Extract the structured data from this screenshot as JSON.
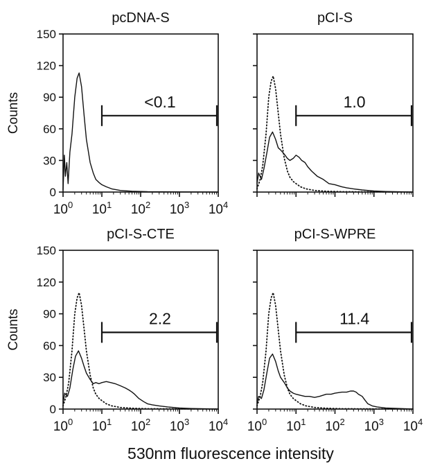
{
  "figure": {
    "xlabel": "530nm fluorescence intensity"
  },
  "chart_data": [
    {
      "type": "line",
      "title": "pcDNA-S",
      "ylabel": "Counts",
      "xscale": "log",
      "xlim": [
        1,
        10000
      ],
      "ylim": [
        0,
        150
      ],
      "yticks": [
        0,
        30,
        60,
        90,
        120,
        150
      ],
      "xticks": [
        1,
        10,
        100,
        1000,
        10000
      ],
      "gate": {
        "x_start": 10,
        "x_end": 10000,
        "y": 60,
        "label": "<0.1"
      },
      "series": [
        {
          "style": "solid",
          "x": [
            1,
            1.08,
            1.15,
            1.25,
            1.35,
            1.5,
            1.7,
            2.0,
            2.3,
            2.6,
            3.0,
            3.5,
            4.0,
            5.0,
            6.0,
            7.0,
            8.5,
            10,
            13,
            18,
            30,
            60,
            150,
            10000
          ],
          "y": [
            2,
            35,
            15,
            28,
            8,
            38,
            55,
            90,
            108,
            113,
            100,
            72,
            50,
            28,
            18,
            12,
            9,
            7,
            5,
            3,
            1.5,
            0.8,
            0.3,
            0
          ]
        }
      ]
    },
    {
      "type": "line",
      "title": "pCI-S",
      "ylabel": "",
      "xscale": "log",
      "xlim": [
        1,
        10000
      ],
      "ylim": [
        0,
        150
      ],
      "gate": {
        "x_start": 10,
        "x_end": 10000,
        "y": 60,
        "label": "1.0"
      },
      "series": [
        {
          "style": "dotted",
          "x": [
            1,
            1.2,
            1.4,
            1.7,
            2.0,
            2.3,
            2.6,
            3.0,
            3.5,
            4.0,
            5.0,
            6.0,
            7.0,
            8.5,
            10,
            13,
            18,
            30,
            60,
            150,
            10000
          ],
          "y": [
            3,
            12,
            25,
            55,
            90,
            105,
            110,
            98,
            75,
            55,
            32,
            20,
            14,
            10,
            8,
            5,
            3,
            1.5,
            0.8,
            0.3,
            0
          ]
        },
        {
          "style": "solid",
          "x": [
            1,
            1.1,
            1.3,
            1.5,
            1.8,
            2.1,
            2.5,
            3.0,
            3.5,
            4.0,
            5.0,
            6.0,
            7.0,
            8.5,
            10,
            12,
            14,
            17,
            20,
            25,
            35,
            50,
            70,
            100,
            150,
            200,
            300,
            500,
            1000,
            2000,
            10000
          ],
          "y": [
            8,
            18,
            12,
            22,
            38,
            52,
            57,
            50,
            42,
            40,
            36,
            32,
            30,
            32,
            35,
            33,
            30,
            28,
            24,
            20,
            15,
            12,
            8,
            7,
            5,
            4,
            3,
            2,
            1,
            0.5,
            0
          ]
        }
      ]
    },
    {
      "type": "line",
      "title": "pCI-S-CTE",
      "ylabel": "Counts",
      "xscale": "log",
      "xlim": [
        1,
        10000
      ],
      "ylim": [
        0,
        150
      ],
      "yticks": [
        0,
        30,
        60,
        90,
        120,
        150
      ],
      "xticks": [
        1,
        10,
        100,
        1000,
        10000
      ],
      "gate": {
        "x_start": 10,
        "x_end": 10000,
        "y": 60,
        "label": "2.2"
      },
      "series": [
        {
          "style": "dotted",
          "x": [
            1,
            1.2,
            1.4,
            1.7,
            2.0,
            2.3,
            2.6,
            3.0,
            3.5,
            4.0,
            5.0,
            6.0,
            7.0,
            8.5,
            10,
            13,
            18,
            30,
            60,
            150,
            10000
          ],
          "y": [
            3,
            12,
            25,
            55,
            90,
            105,
            110,
            98,
            75,
            55,
            32,
            20,
            14,
            10,
            8,
            5,
            3,
            1.5,
            0.8,
            0.3,
            0
          ]
        },
        {
          "style": "solid",
          "x": [
            1,
            1.1,
            1.3,
            1.5,
            1.8,
            2.1,
            2.5,
            3.0,
            3.5,
            4.0,
            5.0,
            6.0,
            7.0,
            8.5,
            10,
            13,
            17,
            22,
            30,
            40,
            50,
            60,
            70,
            90,
            120,
            150,
            200,
            300,
            500,
            1000,
            2000,
            10000
          ],
          "y": [
            5,
            15,
            12,
            20,
            38,
            50,
            55,
            48,
            40,
            34,
            28,
            24,
            25,
            24,
            25,
            26,
            25,
            24,
            22,
            20,
            18,
            16,
            14,
            10,
            7,
            5,
            4,
            3,
            2,
            1,
            0.5,
            0
          ]
        }
      ]
    },
    {
      "type": "line",
      "title": "pCI-S-WPRE",
      "ylabel": "",
      "xscale": "log",
      "xlim": [
        1,
        10000
      ],
      "ylim": [
        0,
        150
      ],
      "xticks": [
        1,
        10,
        100,
        1000,
        10000
      ],
      "gate": {
        "x_start": 10,
        "x_end": 10000,
        "y": 60,
        "label": "11.4"
      },
      "series": [
        {
          "style": "dotted",
          "x": [
            1,
            1.2,
            1.4,
            1.7,
            2.0,
            2.3,
            2.6,
            3.0,
            3.5,
            4.0,
            5.0,
            6.0,
            7.0,
            8.5,
            10,
            13,
            18,
            30,
            60,
            150,
            10000
          ],
          "y": [
            3,
            12,
            25,
            55,
            90,
            105,
            110,
            98,
            75,
            55,
            32,
            20,
            14,
            10,
            8,
            5,
            3,
            1.5,
            0.8,
            0.3,
            0
          ]
        },
        {
          "style": "solid",
          "x": [
            1,
            1.1,
            1.3,
            1.5,
            1.8,
            2.1,
            2.5,
            3.0,
            3.5,
            4.0,
            5.0,
            6.0,
            7.0,
            8.5,
            10,
            13,
            17,
            22,
            30,
            40,
            60,
            80,
            100,
            150,
            200,
            250,
            300,
            350,
            400,
            500,
            600,
            700,
            900,
            1200,
            2000,
            10000
          ],
          "y": [
            5,
            12,
            10,
            18,
            35,
            48,
            52,
            45,
            36,
            30,
            25,
            20,
            17,
            15,
            14,
            13,
            12,
            12,
            11,
            12,
            14,
            14,
            15,
            16,
            16,
            17,
            17,
            16,
            14,
            12,
            8,
            5,
            3,
            2,
            1,
            0
          ]
        }
      ]
    }
  ]
}
